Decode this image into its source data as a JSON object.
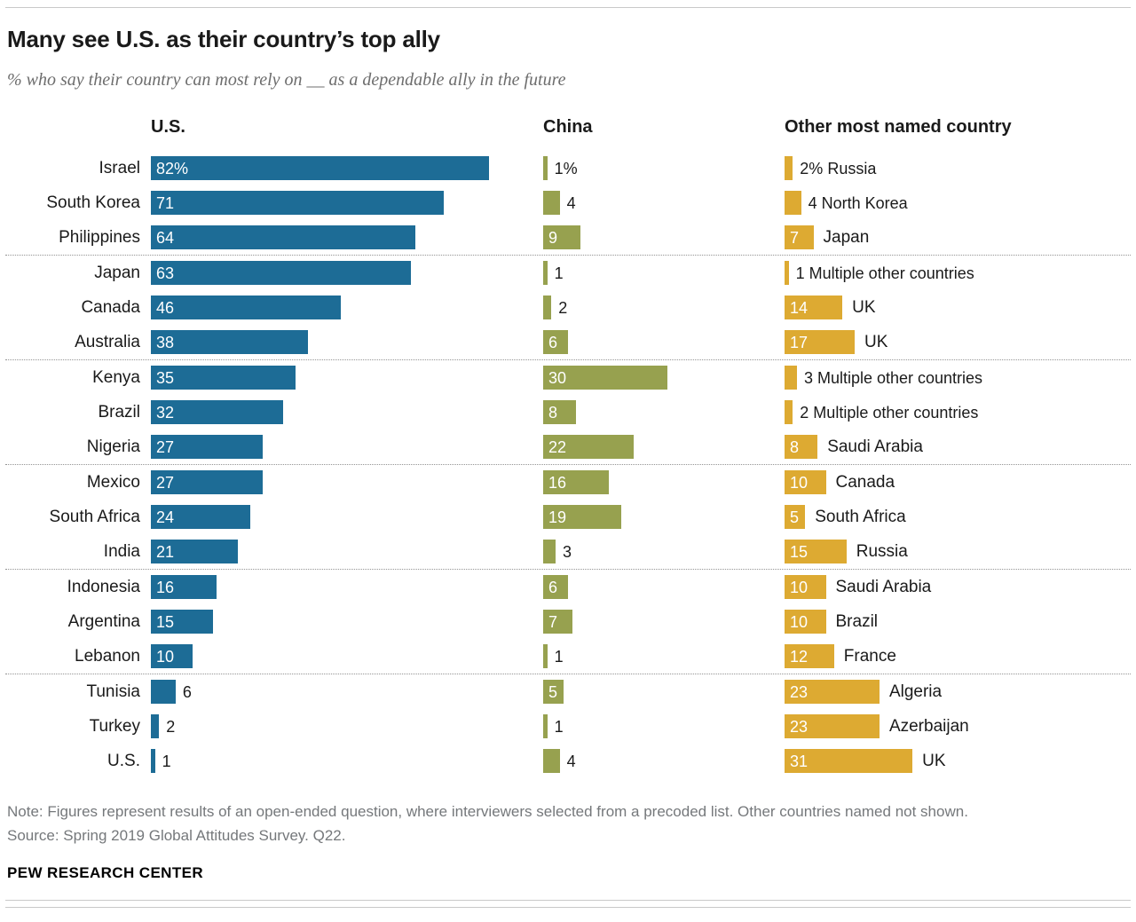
{
  "header": {
    "title": "Many see U.S. as their country’s top ally",
    "subtitle": "% who say their country can most rely on __ as a dependable ally in the future"
  },
  "chart_data": {
    "type": "bar",
    "unit": "%",
    "xlim": [
      0,
      90
    ],
    "first_row_percent_suffix": true,
    "columns": [
      {
        "key": "us",
        "label": "U.S.",
        "color": "#1d6c96",
        "inside_label_min": 10
      },
      {
        "key": "china",
        "label": "China",
        "color": "#97a14f",
        "inside_label_min": 5
      },
      {
        "key": "other",
        "label": "Other most named country",
        "color": "#ddaa32",
        "inside_label_min": 5
      }
    ],
    "rows": [
      {
        "country": "Israel",
        "us": 82,
        "china": 1,
        "other": 2,
        "other_country": "Russia"
      },
      {
        "country": "South Korea",
        "us": 71,
        "china": 4,
        "other": 4,
        "other_country": "North Korea"
      },
      {
        "country": "Philippines",
        "us": 64,
        "china": 9,
        "other": 7,
        "other_country": "Japan"
      },
      {
        "country": "Japan",
        "us": 63,
        "china": 1,
        "other": 1,
        "other_country": "Multiple other countries"
      },
      {
        "country": "Canada",
        "us": 46,
        "china": 2,
        "other": 14,
        "other_country": "UK"
      },
      {
        "country": "Australia",
        "us": 38,
        "china": 6,
        "other": 17,
        "other_country": "UK"
      },
      {
        "country": "Kenya",
        "us": 35,
        "china": 30,
        "other": 3,
        "other_country": "Multiple other countries"
      },
      {
        "country": "Brazil",
        "us": 32,
        "china": 8,
        "other": 2,
        "other_country": "Multiple other countries"
      },
      {
        "country": "Nigeria",
        "us": 27,
        "china": 22,
        "other": 8,
        "other_country": "Saudi Arabia"
      },
      {
        "country": "Mexico",
        "us": 27,
        "china": 16,
        "other": 10,
        "other_country": "Canada"
      },
      {
        "country": "South Africa",
        "us": 24,
        "china": 19,
        "other": 5,
        "other_country": "South Africa"
      },
      {
        "country": "India",
        "us": 21,
        "china": 3,
        "other": 15,
        "other_country": "Russia"
      },
      {
        "country": "Indonesia",
        "us": 16,
        "china": 6,
        "other": 10,
        "other_country": "Saudi Arabia"
      },
      {
        "country": "Argentina",
        "us": 15,
        "china": 7,
        "other": 10,
        "other_country": "Brazil"
      },
      {
        "country": "Lebanon",
        "us": 10,
        "china": 1,
        "other": 12,
        "other_country": "France"
      },
      {
        "country": "Tunisia",
        "us": 6,
        "china": 5,
        "other": 23,
        "other_country": "Algeria"
      },
      {
        "country": "Turkey",
        "us": 2,
        "china": 1,
        "other": 23,
        "other_country": "Azerbaijan"
      },
      {
        "country": "U.S.",
        "us": 1,
        "china": 4,
        "other": 31,
        "other_country": "UK"
      }
    ],
    "separators_after_rows": [
      2,
      5,
      8,
      11,
      14
    ]
  },
  "footer": {
    "note": "Note: Figures represent results of an open-ended question, where interviewers selected from a precoded list. Other countries named not shown.",
    "source": "Source: Spring 2019 Global Attitudes Survey. Q22.",
    "brand": "PEW RESEARCH CENTER"
  }
}
